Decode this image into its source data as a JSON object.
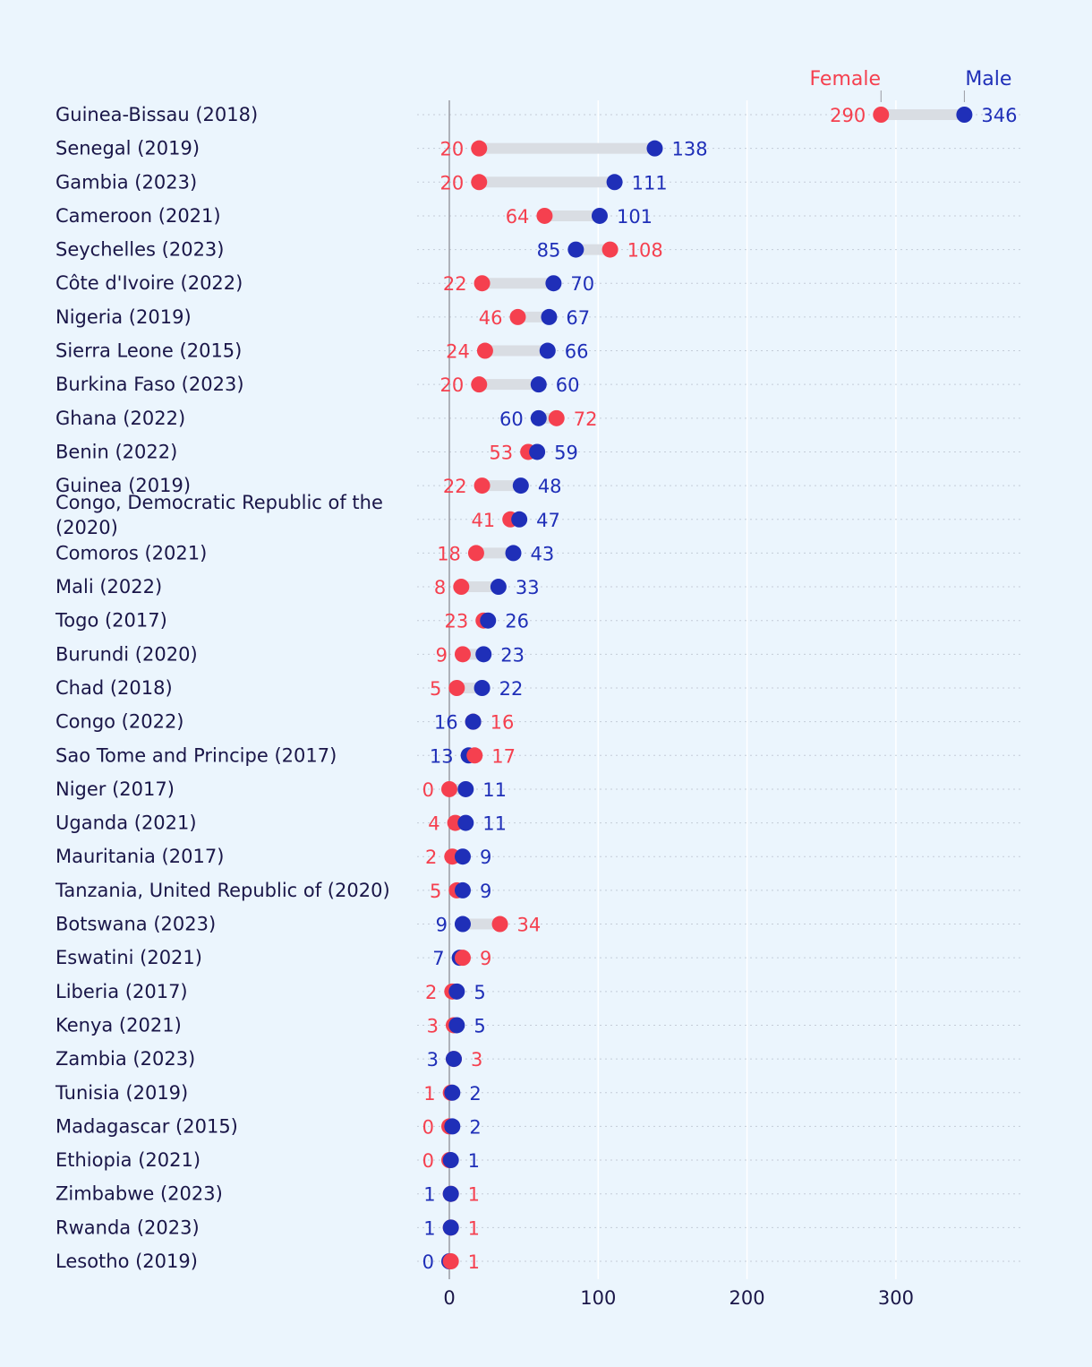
{
  "chart_data": {
    "type": "dumbbell",
    "series": [
      {
        "name": "Female",
        "color": "#f5404f",
        "key": "female"
      },
      {
        "name": "Male",
        "color": "#1f2fb8",
        "key": "male"
      }
    ],
    "rows": [
      {
        "label": "Guinea-Bissau (2018)",
        "female": 290,
        "male": 346
      },
      {
        "label": "Senegal (2019)",
        "female": 20,
        "male": 138
      },
      {
        "label": "Gambia (2023)",
        "female": 20,
        "male": 111
      },
      {
        "label": "Cameroon (2021)",
        "female": 64,
        "male": 101
      },
      {
        "label": "Seychelles (2023)",
        "female": 108,
        "male": 85
      },
      {
        "label": "Côte d'Ivoire (2022)",
        "female": 22,
        "male": 70
      },
      {
        "label": "Nigeria (2019)",
        "female": 46,
        "male": 67
      },
      {
        "label": "Sierra Leone (2015)",
        "female": 24,
        "male": 66
      },
      {
        "label": "Burkina Faso (2023)",
        "female": 20,
        "male": 60
      },
      {
        "label": "Ghana (2022)",
        "female": 72,
        "male": 60
      },
      {
        "label": "Benin (2022)",
        "female": 53,
        "male": 59
      },
      {
        "label": "Guinea (2019)",
        "female": 22,
        "male": 48
      },
      {
        "label": "Congo, Democratic Republic of the (2020)",
        "label_lines": [
          "Congo, Democratic Republic of the",
          "(2020)"
        ],
        "female": 41,
        "male": 47
      },
      {
        "label": "Comoros (2021)",
        "female": 18,
        "male": 43
      },
      {
        "label": "Mali (2022)",
        "female": 8,
        "male": 33
      },
      {
        "label": "Togo (2017)",
        "female": 23,
        "male": 26
      },
      {
        "label": "Burundi (2020)",
        "female": 9,
        "male": 23
      },
      {
        "label": "Chad (2018)",
        "female": 5,
        "male": 22
      },
      {
        "label": "Congo (2022)",
        "female": 16,
        "male": 16
      },
      {
        "label": "Sao Tome and Principe (2017)",
        "female": 17,
        "male": 13
      },
      {
        "label": "Niger (2017)",
        "female": 0,
        "male": 11
      },
      {
        "label": "Uganda (2021)",
        "female": 4,
        "male": 11
      },
      {
        "label": "Mauritania (2017)",
        "female": 2,
        "male": 9
      },
      {
        "label": "Tanzania, United Republic of (2020)",
        "female": 5,
        "male": 9
      },
      {
        "label": "Botswana (2023)",
        "female": 34,
        "male": 9
      },
      {
        "label": "Eswatini (2021)",
        "female": 9,
        "male": 7
      },
      {
        "label": "Liberia (2017)",
        "female": 2,
        "male": 5
      },
      {
        "label": "Kenya (2021)",
        "female": 3,
        "male": 5
      },
      {
        "label": "Zambia (2023)",
        "female": 3,
        "male": 3
      },
      {
        "label": "Tunisia (2019)",
        "female": 1,
        "male": 2
      },
      {
        "label": "Madagascar (2015)",
        "female": 0,
        "male": 2
      },
      {
        "label": "Ethiopia (2021)",
        "female": 0,
        "male": 1
      },
      {
        "label": "Zimbabwe (2023)",
        "female": 1,
        "male": 1
      },
      {
        "label": "Rwanda (2023)",
        "female": 1,
        "male": 1
      },
      {
        "label": "Lesotho (2019)",
        "female": 1,
        "male": 0
      }
    ],
    "x_ticks": [
      0,
      100,
      200,
      300
    ],
    "xlim": [
      0,
      380
    ],
    "xlabel": "",
    "ylabel": "",
    "grid": true,
    "legend_position": "top-right"
  }
}
